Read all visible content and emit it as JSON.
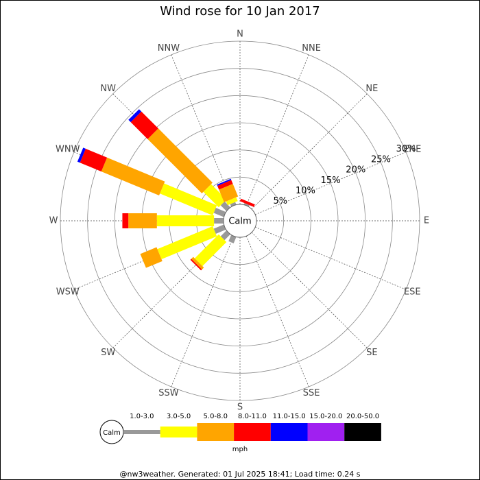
{
  "chart_data": {
    "type": "windrose",
    "title": "Wind rose for 10 Jan 2017",
    "calm_label": "Calm",
    "directions": [
      "N",
      "NNE",
      "NE",
      "ENE",
      "E",
      "ESE",
      "SE",
      "SSE",
      "S",
      "SSW",
      "SW",
      "WSW",
      "W",
      "WNW",
      "NW",
      "NNW"
    ],
    "rlim": [
      0,
      30
    ],
    "rticks": [
      {
        "value": 5,
        "label": "5%"
      },
      {
        "value": 10,
        "label": "10%"
      },
      {
        "value": 15,
        "label": "15%"
      },
      {
        "value": 20,
        "label": "20%"
      },
      {
        "value": 25,
        "label": "25%"
      },
      {
        "value": 30,
        "label": "30%"
      }
    ],
    "series": [
      {
        "name": "1.0-3.0",
        "color": "#999999",
        "values": [
          0,
          0.3,
          0,
          0,
          0,
          0,
          0,
          0,
          0,
          1.25,
          1.5,
          2,
          1.75,
          2,
          1.5,
          0.5
        ]
      },
      {
        "name": "3.0-5.0",
        "color": "#ffff00",
        "values": [
          0,
          0,
          0,
          0,
          0,
          0,
          0,
          0,
          0,
          0,
          6.25,
          11,
          10.5,
          10.5,
          4,
          0.75
        ]
      },
      {
        "name": "5.0-8.0",
        "color": "#ffa500",
        "values": [
          0,
          0,
          0,
          0,
          0,
          0,
          0,
          0,
          0,
          0,
          0.5,
          3.25,
          5.25,
          11.5,
          14.1,
          2.5
        ]
      },
      {
        "name": "8.0-11.0",
        "color": "#ff0000",
        "values": [
          0,
          0.5,
          0,
          0,
          0,
          0,
          0,
          0,
          0,
          0,
          0.25,
          0,
          1.1,
          4.25,
          4.4,
          0.75
        ]
      },
      {
        "name": "11.0-15.0",
        "color": "#0000ff",
        "values": [
          0,
          0,
          0,
          0,
          0,
          0,
          0,
          0,
          0,
          0,
          0,
          0,
          0,
          0.5,
          0.6,
          0.25
        ]
      },
      {
        "name": "15.0-20.0",
        "color": "#a020f0",
        "values": [
          0,
          0,
          0,
          0,
          0,
          0,
          0,
          0,
          0,
          0,
          0,
          0,
          0,
          0,
          0,
          0
        ]
      },
      {
        "name": "20.0-50.0",
        "color": "#000000",
        "values": [
          0,
          0,
          0,
          0,
          0,
          0,
          0,
          0,
          0,
          0,
          0,
          0,
          0,
          0,
          0,
          0
        ]
      }
    ],
    "units": "mph",
    "footer": "@nw3weather. Generated: 01 Jul 2025 18:41; Load time: 0.24 s"
  }
}
